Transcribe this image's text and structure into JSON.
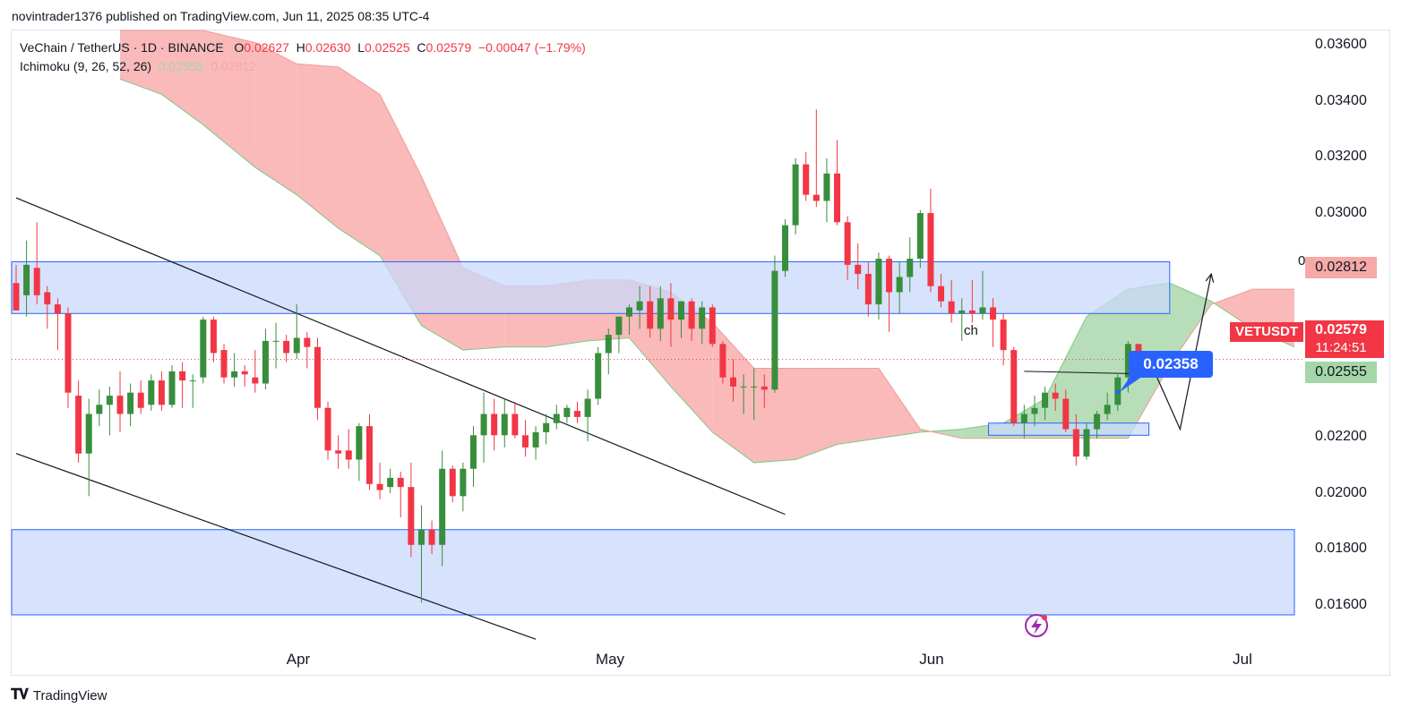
{
  "header": {
    "published_by": "novintrader1376 published on TradingView.com, Jun 11, 2025 08:35 UTC-4"
  },
  "legend": {
    "symbol": "VeChain / TetherUS · 1D · BINANCE",
    "open_label": "O",
    "open": "0.02627",
    "high_label": "H",
    "high": "0.02630",
    "low_label": "L",
    "low": "0.02525",
    "close_label": "C",
    "close": "0.02579",
    "change": "−0.00047 (−1.79%)",
    "indicator": "Ichimoku (9, 26, 52, 26)",
    "ichimoku_a": "0.02555",
    "ichimoku_b": "0.02812"
  },
  "price_axis": {
    "ticks": [
      "0.03600",
      "0.03400",
      "0.03200",
      "0.03000",
      "0.02200",
      "0.02000",
      "0.01800",
      "0.01600"
    ],
    "tag_spanb": "0.02812",
    "tag_symbol": "VETUSDT",
    "tag_price": "0.02579",
    "tag_countdown": "11:24:51",
    "tag_spana": "0.02555",
    "tag_zero": "0"
  },
  "time_axis": {
    "ticks": [
      "Apr",
      "May",
      "Jun",
      "Jul"
    ]
  },
  "annotations": {
    "target_label": "0.02358",
    "ch_label": "ch"
  },
  "footer": {
    "brand": "TradingView"
  },
  "colors": {
    "up": "#388e3c",
    "down": "#f23645",
    "cloud_bear": "#f7a9a7",
    "cloud_bull": "#a5d6a7",
    "zone": "#c9d8fb",
    "zone_border": "#2962ff",
    "label_blue": "#2962ff"
  },
  "icons": {
    "brand": "tradingview-logo-icon",
    "lightning": "lightning-icon"
  },
  "chart_data": {
    "type": "candlestick",
    "symbol": "VETUSDT",
    "timeframe": "1D",
    "ylim": [
      0.0154,
      0.0366
    ],
    "x_range": [
      "2025-03-09",
      "2025-07-10"
    ],
    "grid": false,
    "candles": [
      {
        "d": "2025-03-09",
        "o": 0.0283,
        "h": 0.0289,
        "l": 0.0274,
        "c": 0.0274
      },
      {
        "d": "2025-03-10",
        "o": 0.0279,
        "h": 0.0297,
        "l": 0.0272,
        "c": 0.0289
      },
      {
        "d": "2025-03-11",
        "o": 0.0288,
        "h": 0.0303,
        "l": 0.0276,
        "c": 0.0279
      },
      {
        "d": "2025-03-12",
        "o": 0.028,
        "h": 0.0282,
        "l": 0.0268,
        "c": 0.0276
      },
      {
        "d": "2025-03-13",
        "o": 0.0276,
        "h": 0.0278,
        "l": 0.0261,
        "c": 0.0273
      },
      {
        "d": "2025-03-14",
        "o": 0.0273,
        "h": 0.0275,
        "l": 0.0242,
        "c": 0.0247
      },
      {
        "d": "2025-03-15",
        "o": 0.0246,
        "h": 0.0251,
        "l": 0.0224,
        "c": 0.0227
      },
      {
        "d": "2025-03-16",
        "o": 0.0227,
        "h": 0.0245,
        "l": 0.0213,
        "c": 0.024
      },
      {
        "d": "2025-03-17",
        "o": 0.024,
        "h": 0.0248,
        "l": 0.0236,
        "c": 0.0243
      },
      {
        "d": "2025-03-18",
        "o": 0.0243,
        "h": 0.0249,
        "l": 0.0233,
        "c": 0.0246
      },
      {
        "d": "2025-03-19",
        "o": 0.0246,
        "h": 0.0254,
        "l": 0.0234,
        "c": 0.024
      },
      {
        "d": "2025-03-20",
        "o": 0.024,
        "h": 0.025,
        "l": 0.0236,
        "c": 0.0247
      },
      {
        "d": "2025-03-21",
        "o": 0.0247,
        "h": 0.0251,
        "l": 0.024,
        "c": 0.0242
      },
      {
        "d": "2025-03-22",
        "o": 0.0243,
        "h": 0.0253,
        "l": 0.0241,
        "c": 0.0251
      },
      {
        "d": "2025-03-23",
        "o": 0.0251,
        "h": 0.0254,
        "l": 0.0241,
        "c": 0.0243
      },
      {
        "d": "2025-03-24",
        "o": 0.0243,
        "h": 0.0256,
        "l": 0.0242,
        "c": 0.0254
      },
      {
        "d": "2025-03-25",
        "o": 0.0254,
        "h": 0.0257,
        "l": 0.0242,
        "c": 0.0251
      },
      {
        "d": "2025-03-26",
        "o": 0.0251,
        "h": 0.0253,
        "l": 0.0242,
        "c": 0.0251
      },
      {
        "d": "2025-03-27",
        "o": 0.0252,
        "h": 0.0272,
        "l": 0.025,
        "c": 0.0271
      },
      {
        "d": "2025-03-28",
        "o": 0.0271,
        "h": 0.0272,
        "l": 0.0257,
        "c": 0.026
      },
      {
        "d": "2025-03-29",
        "o": 0.0261,
        "h": 0.0263,
        "l": 0.025,
        "c": 0.0252
      },
      {
        "d": "2025-03-30",
        "o": 0.0252,
        "h": 0.026,
        "l": 0.0249,
        "c": 0.0254
      },
      {
        "d": "2025-03-31",
        "o": 0.0254,
        "h": 0.0256,
        "l": 0.0249,
        "c": 0.0253
      },
      {
        "d": "2025-04-01",
        "o": 0.0252,
        "h": 0.0261,
        "l": 0.0247,
        "c": 0.025
      },
      {
        "d": "2025-04-02",
        "o": 0.025,
        "h": 0.0268,
        "l": 0.0248,
        "c": 0.0264
      },
      {
        "d": "2025-04-03",
        "o": 0.0264,
        "h": 0.027,
        "l": 0.0255,
        "c": 0.0264
      },
      {
        "d": "2025-04-04",
        "o": 0.0264,
        "h": 0.0266,
        "l": 0.0257,
        "c": 0.026
      },
      {
        "d": "2025-04-05",
        "o": 0.026,
        "h": 0.0276,
        "l": 0.0258,
        "c": 0.0265
      },
      {
        "d": "2025-04-06",
        "o": 0.0265,
        "h": 0.0267,
        "l": 0.0255,
        "c": 0.0262
      },
      {
        "d": "2025-04-07",
        "o": 0.0262,
        "h": 0.0265,
        "l": 0.0238,
        "c": 0.0242
      },
      {
        "d": "2025-04-08",
        "o": 0.0242,
        "h": 0.0244,
        "l": 0.0225,
        "c": 0.0228
      },
      {
        "d": "2025-04-09",
        "o": 0.0228,
        "h": 0.0233,
        "l": 0.0222,
        "c": 0.0227
      },
      {
        "d": "2025-04-10",
        "o": 0.0228,
        "h": 0.0235,
        "l": 0.0222,
        "c": 0.0225
      },
      {
        "d": "2025-04-11",
        "o": 0.0225,
        "h": 0.0237,
        "l": 0.0218,
        "c": 0.0236
      },
      {
        "d": "2025-04-12",
        "o": 0.0236,
        "h": 0.024,
        "l": 0.0215,
        "c": 0.0217
      },
      {
        "d": "2025-04-13",
        "o": 0.0217,
        "h": 0.0224,
        "l": 0.0212,
        "c": 0.0215
      },
      {
        "d": "2025-04-14",
        "o": 0.0216,
        "h": 0.0222,
        "l": 0.0214,
        "c": 0.0219
      },
      {
        "d": "2025-04-15",
        "o": 0.0219,
        "h": 0.0221,
        "l": 0.0206,
        "c": 0.0216
      },
      {
        "d": "2025-04-16",
        "o": 0.0216,
        "h": 0.0224,
        "l": 0.0193,
        "c": 0.0197
      },
      {
        "d": "2025-04-17",
        "o": 0.0197,
        "h": 0.021,
        "l": 0.0178,
        "c": 0.0202
      },
      {
        "d": "2025-04-18",
        "o": 0.0202,
        "h": 0.0205,
        "l": 0.0194,
        "c": 0.0197
      },
      {
        "d": "2025-04-19",
        "o": 0.0197,
        "h": 0.0228,
        "l": 0.019,
        "c": 0.0222
      },
      {
        "d": "2025-04-20",
        "o": 0.0222,
        "h": 0.0223,
        "l": 0.0211,
        "c": 0.0213
      },
      {
        "d": "2025-04-21",
        "o": 0.0213,
        "h": 0.0224,
        "l": 0.0208,
        "c": 0.0222
      },
      {
        "d": "2025-04-22",
        "o": 0.0222,
        "h": 0.0236,
        "l": 0.0216,
        "c": 0.0233
      },
      {
        "d": "2025-04-23",
        "o": 0.0233,
        "h": 0.0247,
        "l": 0.0224,
        "c": 0.024
      },
      {
        "d": "2025-04-24",
        "o": 0.024,
        "h": 0.0245,
        "l": 0.0228,
        "c": 0.0233
      },
      {
        "d": "2025-04-25",
        "o": 0.0233,
        "h": 0.0245,
        "l": 0.0229,
        "c": 0.024
      },
      {
        "d": "2025-04-26",
        "o": 0.024,
        "h": 0.0244,
        "l": 0.0232,
        "c": 0.0233
      },
      {
        "d": "2025-04-27",
        "o": 0.0233,
        "h": 0.0238,
        "l": 0.0226,
        "c": 0.0229
      },
      {
        "d": "2025-04-28",
        "o": 0.0229,
        "h": 0.0236,
        "l": 0.0225,
        "c": 0.0234
      },
      {
        "d": "2025-04-29",
        "o": 0.0234,
        "h": 0.024,
        "l": 0.023,
        "c": 0.0237
      },
      {
        "d": "2025-04-30",
        "o": 0.0237,
        "h": 0.0243,
        "l": 0.0235,
        "c": 0.024
      },
      {
        "d": "2025-05-01",
        "o": 0.0239,
        "h": 0.0243,
        "l": 0.0237,
        "c": 0.0242
      },
      {
        "d": "2025-05-02",
        "o": 0.0241,
        "h": 0.0244,
        "l": 0.0237,
        "c": 0.0239
      },
      {
        "d": "2025-05-03",
        "o": 0.0239,
        "h": 0.0248,
        "l": 0.0231,
        "c": 0.0245
      },
      {
        "d": "2025-05-04",
        "o": 0.0245,
        "h": 0.0262,
        "l": 0.0243,
        "c": 0.026
      },
      {
        "d": "2025-05-05",
        "o": 0.026,
        "h": 0.0268,
        "l": 0.0253,
        "c": 0.0266
      },
      {
        "d": "2025-05-06",
        "o": 0.0266,
        "h": 0.0271,
        "l": 0.026,
        "c": 0.0272
      },
      {
        "d": "2025-05-07",
        "o": 0.0272,
        "h": 0.0276,
        "l": 0.0266,
        "c": 0.0275
      },
      {
        "d": "2025-05-08",
        "o": 0.0274,
        "h": 0.0282,
        "l": 0.0268,
        "c": 0.0277
      },
      {
        "d": "2025-05-09",
        "o": 0.0277,
        "h": 0.0282,
        "l": 0.0265,
        "c": 0.0268
      },
      {
        "d": "2025-05-10",
        "o": 0.0268,
        "h": 0.0282,
        "l": 0.0264,
        "c": 0.0278
      },
      {
        "d": "2025-05-11",
        "o": 0.0278,
        "h": 0.0283,
        "l": 0.0262,
        "c": 0.0271
      },
      {
        "d": "2025-05-12",
        "o": 0.0271,
        "h": 0.0277,
        "l": 0.0265,
        "c": 0.0277
      },
      {
        "d": "2025-05-13",
        "o": 0.0277,
        "h": 0.0278,
        "l": 0.0264,
        "c": 0.0268
      },
      {
        "d": "2025-05-14",
        "o": 0.0268,
        "h": 0.0277,
        "l": 0.0263,
        "c": 0.0275
      },
      {
        "d": "2025-05-15",
        "o": 0.0275,
        "h": 0.0276,
        "l": 0.0262,
        "c": 0.0263
      },
      {
        "d": "2025-05-16",
        "o": 0.0263,
        "h": 0.0264,
        "l": 0.025,
        "c": 0.0252
      },
      {
        "d": "2025-05-17",
        "o": 0.0252,
        "h": 0.0258,
        "l": 0.0244,
        "c": 0.0249
      },
      {
        "d": "2025-05-18",
        "o": 0.0249,
        "h": 0.0253,
        "l": 0.024,
        "c": 0.0249
      },
      {
        "d": "2025-05-19",
        "o": 0.0249,
        "h": 0.0255,
        "l": 0.0238,
        "c": 0.0249
      },
      {
        "d": "2025-05-20",
        "o": 0.0249,
        "h": 0.0253,
        "l": 0.0242,
        "c": 0.0248
      },
      {
        "d": "2025-05-21",
        "o": 0.0248,
        "h": 0.0292,
        "l": 0.0247,
        "c": 0.0287
      },
      {
        "d": "2025-05-22",
        "o": 0.0287,
        "h": 0.0304,
        "l": 0.0285,
        "c": 0.0302
      },
      {
        "d": "2025-05-23",
        "o": 0.0302,
        "h": 0.0324,
        "l": 0.0299,
        "c": 0.0322
      },
      {
        "d": "2025-05-24",
        "o": 0.0322,
        "h": 0.0326,
        "l": 0.031,
        "c": 0.0312
      },
      {
        "d": "2025-05-25",
        "o": 0.0312,
        "h": 0.034,
        "l": 0.0308,
        "c": 0.031
      },
      {
        "d": "2025-05-26",
        "o": 0.031,
        "h": 0.0324,
        "l": 0.0303,
        "c": 0.0319
      },
      {
        "d": "2025-05-27",
        "o": 0.0319,
        "h": 0.033,
        "l": 0.0302,
        "c": 0.0303
      },
      {
        "d": "2025-05-28",
        "o": 0.0303,
        "h": 0.0305,
        "l": 0.0284,
        "c": 0.0289
      },
      {
        "d": "2025-05-29",
        "o": 0.0289,
        "h": 0.0296,
        "l": 0.0281,
        "c": 0.0286
      },
      {
        "d": "2025-05-30",
        "o": 0.0286,
        "h": 0.029,
        "l": 0.0272,
        "c": 0.0276
      },
      {
        "d": "2025-05-31",
        "o": 0.0276,
        "h": 0.0293,
        "l": 0.0271,
        "c": 0.0291
      },
      {
        "d": "2025-06-01",
        "o": 0.0291,
        "h": 0.0292,
        "l": 0.0267,
        "c": 0.028
      },
      {
        "d": "2025-06-02",
        "o": 0.028,
        "h": 0.029,
        "l": 0.0273,
        "c": 0.0285
      },
      {
        "d": "2025-06-03",
        "o": 0.0285,
        "h": 0.0298,
        "l": 0.028,
        "c": 0.0291
      },
      {
        "d": "2025-06-04",
        "o": 0.0291,
        "h": 0.0307,
        "l": 0.0288,
        "c": 0.0306
      },
      {
        "d": "2025-06-05",
        "o": 0.0306,
        "h": 0.0314,
        "l": 0.028,
        "c": 0.0282
      },
      {
        "d": "2025-06-06",
        "o": 0.0282,
        "h": 0.0286,
        "l": 0.0275,
        "c": 0.0277
      },
      {
        "d": "2025-06-07",
        "o": 0.0277,
        "h": 0.0284,
        "l": 0.027,
        "c": 0.0273
      },
      {
        "d": "2025-06-08",
        "o": 0.0273,
        "h": 0.0278,
        "l": 0.0264,
        "c": 0.0274
      },
      {
        "d": "2025-06-09",
        "o": 0.0274,
        "h": 0.0284,
        "l": 0.027,
        "c": 0.0273
      },
      {
        "d": "2025-06-10",
        "o": 0.0273,
        "h": 0.0287,
        "l": 0.0271,
        "c": 0.0275
      },
      {
        "d": "2025-06-11",
        "o": 0.0275,
        "h": 0.0278,
        "l": 0.0262,
        "c": 0.0271
      },
      {
        "d": "2025-06-12",
        "o": 0.0271,
        "h": 0.0273,
        "l": 0.0256,
        "c": 0.0261
      },
      {
        "d": "2025-06-13",
        "o": 0.0261,
        "h": 0.0262,
        "l": 0.0236,
        "c": 0.0237
      },
      {
        "d": "2025-06-14",
        "o": 0.0237,
        "h": 0.0243,
        "l": 0.0232,
        "c": 0.024
      },
      {
        "d": "2025-06-15",
        "o": 0.024,
        "h": 0.0246,
        "l": 0.0236,
        "c": 0.0242
      },
      {
        "d": "2025-06-16",
        "o": 0.0242,
        "h": 0.0249,
        "l": 0.0238,
        "c": 0.0247
      },
      {
        "d": "2025-06-17",
        "o": 0.0247,
        "h": 0.025,
        "l": 0.0241,
        "c": 0.0245
      },
      {
        "d": "2025-06-18",
        "o": 0.0245,
        "h": 0.0248,
        "l": 0.0234,
        "c": 0.0235
      },
      {
        "d": "2025-06-19",
        "o": 0.0235,
        "h": 0.024,
        "l": 0.0223,
        "c": 0.0226
      },
      {
        "d": "2025-06-20",
        "o": 0.0226,
        "h": 0.0237,
        "l": 0.0225,
        "c": 0.0235
      },
      {
        "d": "2025-06-21",
        "o": 0.0235,
        "h": 0.0241,
        "l": 0.0232,
        "c": 0.024
      },
      {
        "d": "2025-06-22",
        "o": 0.024,
        "h": 0.0247,
        "l": 0.0238,
        "c": 0.0243
      },
      {
        "d": "2025-06-23",
        "o": 0.0243,
        "h": 0.0253,
        "l": 0.0241,
        "c": 0.0252
      },
      {
        "d": "2025-06-24",
        "o": 0.0252,
        "h": 0.0264,
        "l": 0.0247,
        "c": 0.0263
      },
      {
        "d": "2025-06-25",
        "o": 0.0263,
        "h": 0.0263,
        "l": 0.0252,
        "c": 0.0258
      }
    ],
    "ichimoku_cloud": {
      "dates": [
        "2025-03-19",
        "2025-03-23",
        "2025-03-27",
        "2025-04-01",
        "2025-04-05",
        "2025-04-09",
        "2025-04-13",
        "2025-04-17",
        "2025-04-21",
        "2025-04-25",
        "2025-04-29",
        "2025-05-03",
        "2025-05-07",
        "2025-05-11",
        "2025-05-15",
        "2025-05-19",
        "2025-05-23",
        "2025-05-27",
        "2025-05-31",
        "2025-06-04",
        "2025-06-08",
        "2025-06-12",
        "2025-06-16",
        "2025-06-20",
        "2025-06-24",
        "2025-06-28",
        "2025-07-02",
        "2025-07-06",
        "2025-07-10"
      ],
      "span_a": [
        0.035,
        0.0345,
        0.0335,
        0.0321,
        0.0312,
        0.0301,
        0.0292,
        0.0269,
        0.0261,
        0.0262,
        0.0262,
        0.0264,
        0.0265,
        0.0249,
        0.0234,
        0.0224,
        0.0225,
        0.023,
        0.0232,
        0.0234,
        0.0235,
        0.0237,
        0.0245,
        0.0272,
        0.0281,
        0.0283,
        0.0277,
        0.0268,
        0.0262
      ],
      "span_b": [
        0.0366,
        0.0366,
        0.0366,
        0.0362,
        0.0355,
        0.0354,
        0.0345,
        0.0318,
        0.0288,
        0.0282,
        0.0282,
        0.0284,
        0.0284,
        0.028,
        0.027,
        0.0255,
        0.0255,
        0.0255,
        0.0255,
        0.0235,
        0.0232,
        0.0232,
        0.0232,
        0.0232,
        0.0232,
        0.0256,
        0.0276,
        0.0281,
        0.0281
      ]
    },
    "zones": [
      {
        "from": "2025-03-09",
        "to": "2025-06-28",
        "y_low": 0.0273,
        "y_high": 0.029
      },
      {
        "from": "2025-03-09",
        "to": "2025-07-10",
        "y_low": 0.0174,
        "y_high": 0.0202
      },
      {
        "from": "2025-06-11",
        "to": "2025-06-26",
        "y_low": 0.0233,
        "y_high": 0.0237
      }
    ],
    "trendlines": [
      {
        "from": [
          "2025-03-09",
          0.0311
        ],
        "to": [
          "2025-05-22",
          0.0207
        ]
      },
      {
        "from": [
          "2025-03-09",
          0.0227
        ],
        "to": [
          "2025-04-28",
          0.0166
        ]
      }
    ],
    "projection_path": [
      [
        "2025-06-26",
        0.0258
      ],
      [
        "2025-06-29",
        0.0235
      ],
      [
        "2025-07-02",
        0.0286
      ]
    ],
    "neckline": {
      "from": [
        "2025-06-14",
        0.0254
      ],
      "to": [
        "2025-06-28",
        0.0253
      ]
    },
    "current_price": 0.02579
  }
}
